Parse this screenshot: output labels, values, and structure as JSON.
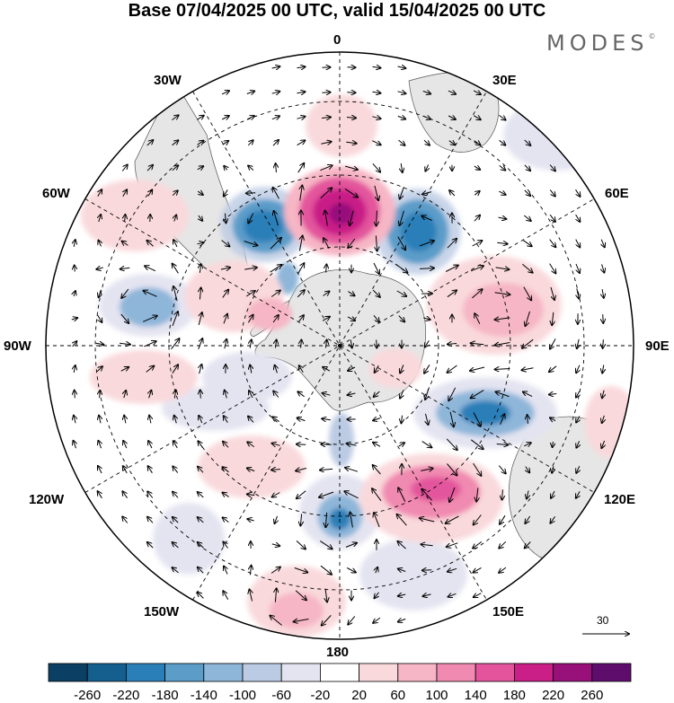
{
  "title": "Base 07/04/2025 00 UTC, valid 15/04/2025 00 UTC",
  "brand": "MODES",
  "brand_mark": "©",
  "longitude_labels": {
    "top": "0",
    "bottom": "180",
    "left": "90W",
    "right": "90E",
    "n30w": "30W",
    "n30e": "30E",
    "n60w": "60W",
    "n60e": "60E",
    "s120w": "120W",
    "s120e": "120E",
    "s150w": "150W",
    "s150e": "150E"
  },
  "reference_vector": "30",
  "colorbar": {
    "ticks": [
      "-260",
      "-220",
      "-180",
      "-140",
      "-100",
      "-60",
      "-20",
      "20",
      "60",
      "100",
      "140",
      "180",
      "220",
      "260"
    ],
    "colors": [
      "#0b3f63",
      "#155f8e",
      "#2b7fb8",
      "#5b9cc9",
      "#8eb6d9",
      "#bccbe4",
      "#e4e4f1",
      "#ffffff",
      "#f9d9dc",
      "#f6b6c5",
      "#f08ab0",
      "#e3549c",
      "#c91f87",
      "#98117b",
      "#5e0d6d"
    ]
  },
  "colors": {
    "land": "#e8e8e8",
    "grid": "#000000"
  }
}
